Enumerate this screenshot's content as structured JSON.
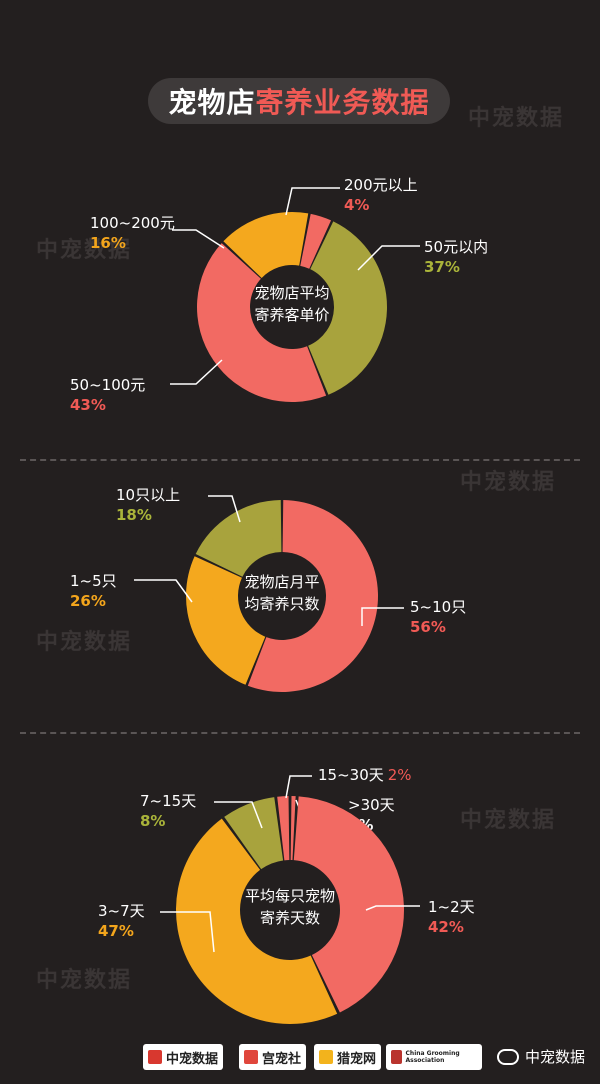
{
  "header": {
    "title_part1": "宠物店",
    "title_part2": "寄养业务数据"
  },
  "watermark": "中宠数据",
  "colors": {
    "red": "#f26a63",
    "olive": "#a8a33d",
    "orange": "#f4a81e",
    "red_text": "#f05a55",
    "olive_text": "#aab43a",
    "orange_text": "#f3a51c",
    "center": "#231f1f"
  },
  "chart_data": [
    {
      "type": "pie",
      "title": "宠物店平均寄养客单价",
      "center_lines": [
        "宠物店平均",
        "寄养客单价"
      ],
      "slices": [
        {
          "label": "50元以内",
          "value": 37,
          "pct": "37%",
          "color": "#a8a33d"
        },
        {
          "label": "50~100元",
          "value": 43,
          "pct": "43%",
          "color": "#f26a63"
        },
        {
          "label": "100~200元",
          "value": 16,
          "pct": "16%",
          "color": "#f4a81e"
        },
        {
          "label": "200元以上",
          "value": 4,
          "pct": "4%",
          "color": "#f26a63"
        }
      ]
    },
    {
      "type": "pie",
      "title": "宠物店月平均寄养只数",
      "center_lines": [
        "宠物店月平",
        "均寄养只数"
      ],
      "slices": [
        {
          "label": "5~10只",
          "value": 56,
          "pct": "56%",
          "color": "#f26a63"
        },
        {
          "label": "1~5只",
          "value": 26,
          "pct": "26%",
          "color": "#f4a81e"
        },
        {
          "label": "10只以上",
          "value": 18,
          "pct": "18%",
          "color": "#a8a33d"
        }
      ]
    },
    {
      "type": "pie",
      "title": "平均每只宠物寄养天数",
      "center_lines": [
        "平均每只宠物",
        "寄养天数"
      ],
      "slices": [
        {
          "label": ">30天",
          "value": 1,
          "pct": "1%",
          "color": "#f26a63"
        },
        {
          "label": "1~2天",
          "value": 42,
          "pct": "42%",
          "color": "#f26a63"
        },
        {
          "label": "3~7天",
          "value": 47,
          "pct": "47%",
          "color": "#f4a81e"
        },
        {
          "label": "7~15天",
          "value": 8,
          "pct": "8%",
          "color": "#a8a33d"
        },
        {
          "label": "15~30天",
          "value": 2,
          "pct": "2%",
          "color": "#f26a63"
        }
      ]
    }
  ],
  "footer": {
    "logos": [
      "中宠数据",
      "宫宠社",
      "猎宠网",
      "China Grooming Association"
    ],
    "wechat": "中宠数据"
  }
}
